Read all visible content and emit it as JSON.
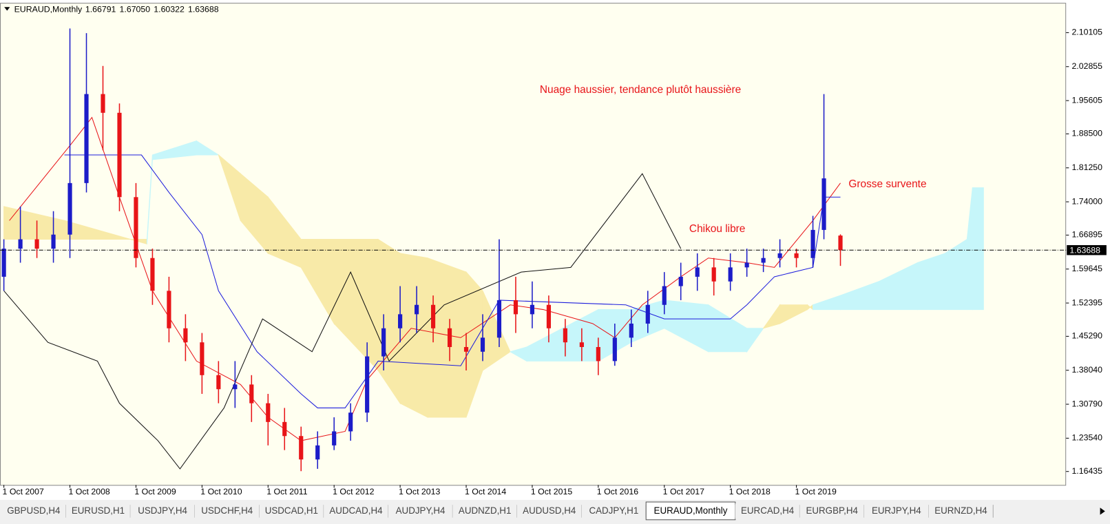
{
  "chart_data": {
    "type": "candlestick",
    "header": {
      "symbol": "EURAUD,Monthly",
      "values": [
        1.66791,
        1.6705,
        1.60322,
        1.63688
      ],
      "value_labels": [
        "1.66791",
        "1.67050",
        "1.60322",
        "1.63688"
      ]
    },
    "up_color": "#1c1cc8",
    "down_color": "#e81418",
    "x": [
      "2007-10-01",
      "2008-01-01",
      "2008-04-01",
      "2008-07-01",
      "2008-10-01",
      "2009-01-01",
      "2009-04-01",
      "2009-07-01",
      "2009-10-01",
      "2010-01-01",
      "2010-04-01",
      "2010-07-01",
      "2010-10-01",
      "2011-01-01",
      "2011-04-01",
      "2011-07-01",
      "2011-10-01",
      "2012-01-01",
      "2012-04-01",
      "2012-07-01",
      "2012-10-01",
      "2013-01-01",
      "2013-04-01",
      "2013-07-01",
      "2013-10-01",
      "2014-01-01",
      "2014-04-01",
      "2014-07-01",
      "2014-10-01",
      "2015-01-01",
      "2015-04-01",
      "2015-07-01",
      "2015-10-01",
      "2016-01-01",
      "2016-04-01",
      "2016-07-01",
      "2016-10-01",
      "2017-01-01",
      "2017-04-01",
      "2017-07-01",
      "2017-10-01",
      "2018-01-01",
      "2018-04-01",
      "2018-07-01",
      "2018-10-01",
      "2019-01-01",
      "2019-04-01",
      "2019-07-01",
      "2019-10-01",
      "2020-01-01",
      "2020-03-01",
      "2020-06-01"
    ],
    "ohlc": [
      [
        1.58,
        1.66,
        1.55,
        1.64
      ],
      [
        1.64,
        1.73,
        1.61,
        1.66
      ],
      [
        1.66,
        1.7,
        1.62,
        1.64
      ],
      [
        1.64,
        1.72,
        1.61,
        1.67
      ],
      [
        1.67,
        2.11,
        1.62,
        1.78
      ],
      [
        1.78,
        2.1,
        1.76,
        1.97
      ],
      [
        1.97,
        2.03,
        1.85,
        1.93
      ],
      [
        1.93,
        1.95,
        1.72,
        1.75
      ],
      [
        1.75,
        1.78,
        1.6,
        1.62
      ],
      [
        1.62,
        1.64,
        1.52,
        1.55
      ],
      [
        1.55,
        1.58,
        1.44,
        1.47
      ],
      [
        1.47,
        1.5,
        1.4,
        1.44
      ],
      [
        1.44,
        1.46,
        1.33,
        1.37
      ],
      [
        1.37,
        1.4,
        1.31,
        1.34
      ],
      [
        1.34,
        1.4,
        1.3,
        1.35
      ],
      [
        1.35,
        1.37,
        1.27,
        1.31
      ],
      [
        1.31,
        1.33,
        1.22,
        1.27
      ],
      [
        1.27,
        1.3,
        1.21,
        1.24
      ],
      [
        1.24,
        1.26,
        1.165,
        1.19
      ],
      [
        1.19,
        1.25,
        1.17,
        1.22
      ],
      [
        1.22,
        1.28,
        1.21,
        1.25
      ],
      [
        1.25,
        1.31,
        1.23,
        1.29
      ],
      [
        1.29,
        1.44,
        1.27,
        1.41
      ],
      [
        1.41,
        1.5,
        1.38,
        1.47
      ],
      [
        1.47,
        1.56,
        1.44,
        1.5
      ],
      [
        1.5,
        1.56,
        1.46,
        1.52
      ],
      [
        1.52,
        1.54,
        1.44,
        1.47
      ],
      [
        1.47,
        1.49,
        1.4,
        1.43
      ],
      [
        1.43,
        1.46,
        1.38,
        1.42
      ],
      [
        1.42,
        1.5,
        1.4,
        1.45
      ],
      [
        1.45,
        1.66,
        1.43,
        1.53
      ],
      [
        1.53,
        1.58,
        1.46,
        1.5
      ],
      [
        1.5,
        1.57,
        1.47,
        1.52
      ],
      [
        1.52,
        1.54,
        1.44,
        1.47
      ],
      [
        1.47,
        1.49,
        1.41,
        1.44
      ],
      [
        1.44,
        1.47,
        1.4,
        1.43
      ],
      [
        1.43,
        1.45,
        1.37,
        1.4
      ],
      [
        1.4,
        1.48,
        1.39,
        1.45
      ],
      [
        1.45,
        1.51,
        1.43,
        1.48
      ],
      [
        1.48,
        1.55,
        1.46,
        1.52
      ],
      [
        1.52,
        1.59,
        1.5,
        1.56
      ],
      [
        1.56,
        1.61,
        1.53,
        1.58
      ],
      [
        1.58,
        1.63,
        1.55,
        1.6
      ],
      [
        1.6,
        1.62,
        1.54,
        1.57
      ],
      [
        1.57,
        1.63,
        1.55,
        1.6
      ],
      [
        1.6,
        1.64,
        1.58,
        1.61
      ],
      [
        1.61,
        1.64,
        1.59,
        1.62
      ],
      [
        1.62,
        1.66,
        1.6,
        1.63
      ],
      [
        1.63,
        1.64,
        1.6,
        1.62
      ],
      [
        1.62,
        1.71,
        1.6,
        1.68
      ],
      [
        1.68,
        1.97,
        1.66,
        1.79
      ],
      [
        1.66791,
        1.6705,
        1.60322,
        1.63688
      ]
    ],
    "lines": [
      {
        "color": "#e81418",
        "x": [
          "2007-11-01",
          "2008-10-01",
          "2009-02-01",
          "2009-07-01",
          "2010-01-01",
          "2010-09-01",
          "2011-05-01",
          "2011-10-01",
          "2012-04-01",
          "2012-12-01",
          "2013-04-01",
          "2013-12-01",
          "2014-09-01",
          "2015-06-01",
          "2015-12-01",
          "2016-09-01",
          "2017-01-01",
          "2017-06-01",
          "2018-01-01",
          "2018-06-01",
          "2019-01-01",
          "2019-06-01",
          "2020-01-01",
          "2020-06-01"
        ],
        "values": [
          1.7,
          1.86,
          1.92,
          1.75,
          1.55,
          1.4,
          1.35,
          1.28,
          1.23,
          1.25,
          1.36,
          1.47,
          1.45,
          1.52,
          1.51,
          1.48,
          1.45,
          1.52,
          1.58,
          1.62,
          1.61,
          1.6,
          1.7,
          1.78
        ]
      },
      {
        "color": "#1c1cdc",
        "x": [
          "2008-09-01",
          "2009-11-01",
          "2010-04-01",
          "2010-10-01",
          "2011-01-01",
          "2011-08-01",
          "2012-04-01",
          "2012-07-01",
          "2012-12-01",
          "2013-06-01",
          "2014-09-01",
          "2015-04-01",
          "2017-03-01",
          "2017-10-01",
          "2018-10-01",
          "2019-01-01",
          "2019-06-01",
          "2020-01-01",
          "2020-03-01",
          "2020-06-01"
        ],
        "values": [
          1.84,
          1.84,
          1.76,
          1.67,
          1.55,
          1.42,
          1.33,
          1.3,
          1.3,
          1.4,
          1.39,
          1.53,
          1.52,
          1.49,
          1.49,
          1.52,
          1.58,
          1.6,
          1.75,
          1.75
        ]
      },
      {
        "color": "#111111",
        "x": [
          "2007-10-01",
          "2008-06-01",
          "2009-03-01",
          "2009-07-01",
          "2010-02-01",
          "2010-06-01",
          "2011-02-01",
          "2011-09-01",
          "2012-06-01",
          "2013-01-01",
          "2013-08-01",
          "2014-06-01",
          "2015-08-01",
          "2016-05-01",
          "2017-06-01",
          "2018-01-01"
        ],
        "values": [
          1.55,
          1.44,
          1.4,
          1.31,
          1.23,
          1.17,
          1.3,
          1.49,
          1.42,
          1.59,
          1.4,
          1.52,
          1.59,
          1.6,
          1.8,
          1.64
        ]
      }
    ],
    "cloud": {
      "up_color": "#f8eaa8",
      "down_color": "#c6f6fa",
      "x": [
        "2007-10-01",
        "2008-09-01",
        "2009-12-01",
        "2010-01-01",
        "2010-09-01",
        "2011-01-01",
        "2011-05-01",
        "2011-10-01",
        "2012-04-01",
        "2012-10-01",
        "2013-06-01",
        "2013-10-01",
        "2014-03-01",
        "2014-10-01",
        "2015-01-01",
        "2015-06-01",
        "2015-09-01",
        "2016-10-01",
        "2017-04-01",
        "2017-10-01",
        "2018-06-01",
        "2019-01-01",
        "2019-04-01",
        "2019-07-01",
        "2019-12-01",
        "2020-01-01",
        "2020-06-01",
        "2021-01-01",
        "2021-08-01",
        "2022-01-01",
        "2022-05-01",
        "2022-06-01",
        "2022-08-01"
      ],
      "span_a": [
        1.73,
        1.7,
        1.65,
        1.83,
        1.84,
        1.84,
        1.8,
        1.75,
        1.66,
        1.66,
        1.66,
        1.63,
        1.62,
        1.59,
        1.55,
        1.42,
        1.4,
        1.4,
        1.44,
        1.47,
        1.42,
        1.42,
        1.47,
        1.52,
        1.52,
        1.51,
        1.51,
        1.51,
        1.51,
        1.51,
        1.51,
        1.51,
        1.51
      ],
      "span_b": [
        1.66,
        1.66,
        1.66,
        1.84,
        1.87,
        1.84,
        1.7,
        1.63,
        1.6,
        1.48,
        1.38,
        1.31,
        1.28,
        1.28,
        1.38,
        1.42,
        1.43,
        1.51,
        1.51,
        1.53,
        1.52,
        1.47,
        1.47,
        1.48,
        1.51,
        1.52,
        1.54,
        1.57,
        1.61,
        1.63,
        1.66,
        1.77,
        1.77
      ]
    },
    "last_price": {
      "value": 1.63688,
      "label": "1.63688"
    },
    "ylim": [
      1.1356,
      2.1632
    ],
    "yticks": [
      {
        "value": 2.10105,
        "label": "2.10105"
      },
      {
        "value": 2.02855,
        "label": "2.02855"
      },
      {
        "value": 1.95605,
        "label": "1.95605"
      },
      {
        "value": 1.885,
        "label": "1.88500"
      },
      {
        "value": 1.8125,
        "label": "1.81250"
      },
      {
        "value": 1.74,
        "label": "1.74000"
      },
      {
        "value": 1.66895,
        "label": "1.66895"
      },
      {
        "value": 1.59645,
        "label": "1.59645"
      },
      {
        "value": 1.52395,
        "label": "1.52395"
      },
      {
        "value": 1.4529,
        "label": "1.45290"
      },
      {
        "value": 1.3804,
        "label": "1.38040"
      },
      {
        "value": 1.3079,
        "label": "1.30790"
      },
      {
        "value": 1.2354,
        "label": "1.23540"
      },
      {
        "value": 1.16435,
        "label": "1.16435"
      }
    ],
    "xlim": [
      "2007-09-10",
      "2023-11-01"
    ],
    "xticks": [
      {
        "value": "2007-10-01",
        "label": "1 Oct 2007"
      },
      {
        "value": "2008-10-01",
        "label": "1 Oct 2008"
      },
      {
        "value": "2009-10-01",
        "label": "1 Oct 2009"
      },
      {
        "value": "2010-10-01",
        "label": "1 Oct 2010"
      },
      {
        "value": "2011-10-01",
        "label": "1 Oct 2011"
      },
      {
        "value": "2012-10-01",
        "label": "1 Oct 2012"
      },
      {
        "value": "2013-10-01",
        "label": "1 Oct 2013"
      },
      {
        "value": "2014-10-01",
        "label": "1 Oct 2014"
      },
      {
        "value": "2015-10-01",
        "label": "1 Oct 2015"
      },
      {
        "value": "2016-10-01",
        "label": "1 Oct 2016"
      },
      {
        "value": "2017-10-01",
        "label": "1 Oct 2017"
      },
      {
        "value": "2018-10-01",
        "label": "1 Oct 2018"
      },
      {
        "value": "2019-10-01",
        "label": "1 Oct 2019"
      }
    ],
    "annotations": [
      "Nuage haussier, tendance plutôt haussière",
      "Grosse survente",
      "Chikou libre"
    ],
    "tabs": [
      "GBPUSD,H4",
      "EURUSD,H1",
      "USDJPY,H4",
      "USDCHF,H4",
      "USDCAD,H1",
      "AUDCAD,H4",
      "AUDJPY,H4",
      "AUDNZD,H1",
      "AUDUSD,H4",
      "CADJPY,H1",
      "EURAUD,Monthly",
      "EURCAD,H4",
      "EURGBP,H4",
      "EURJPY,H4",
      "EURNZD,H4"
    ],
    "active_tab": 10
  }
}
